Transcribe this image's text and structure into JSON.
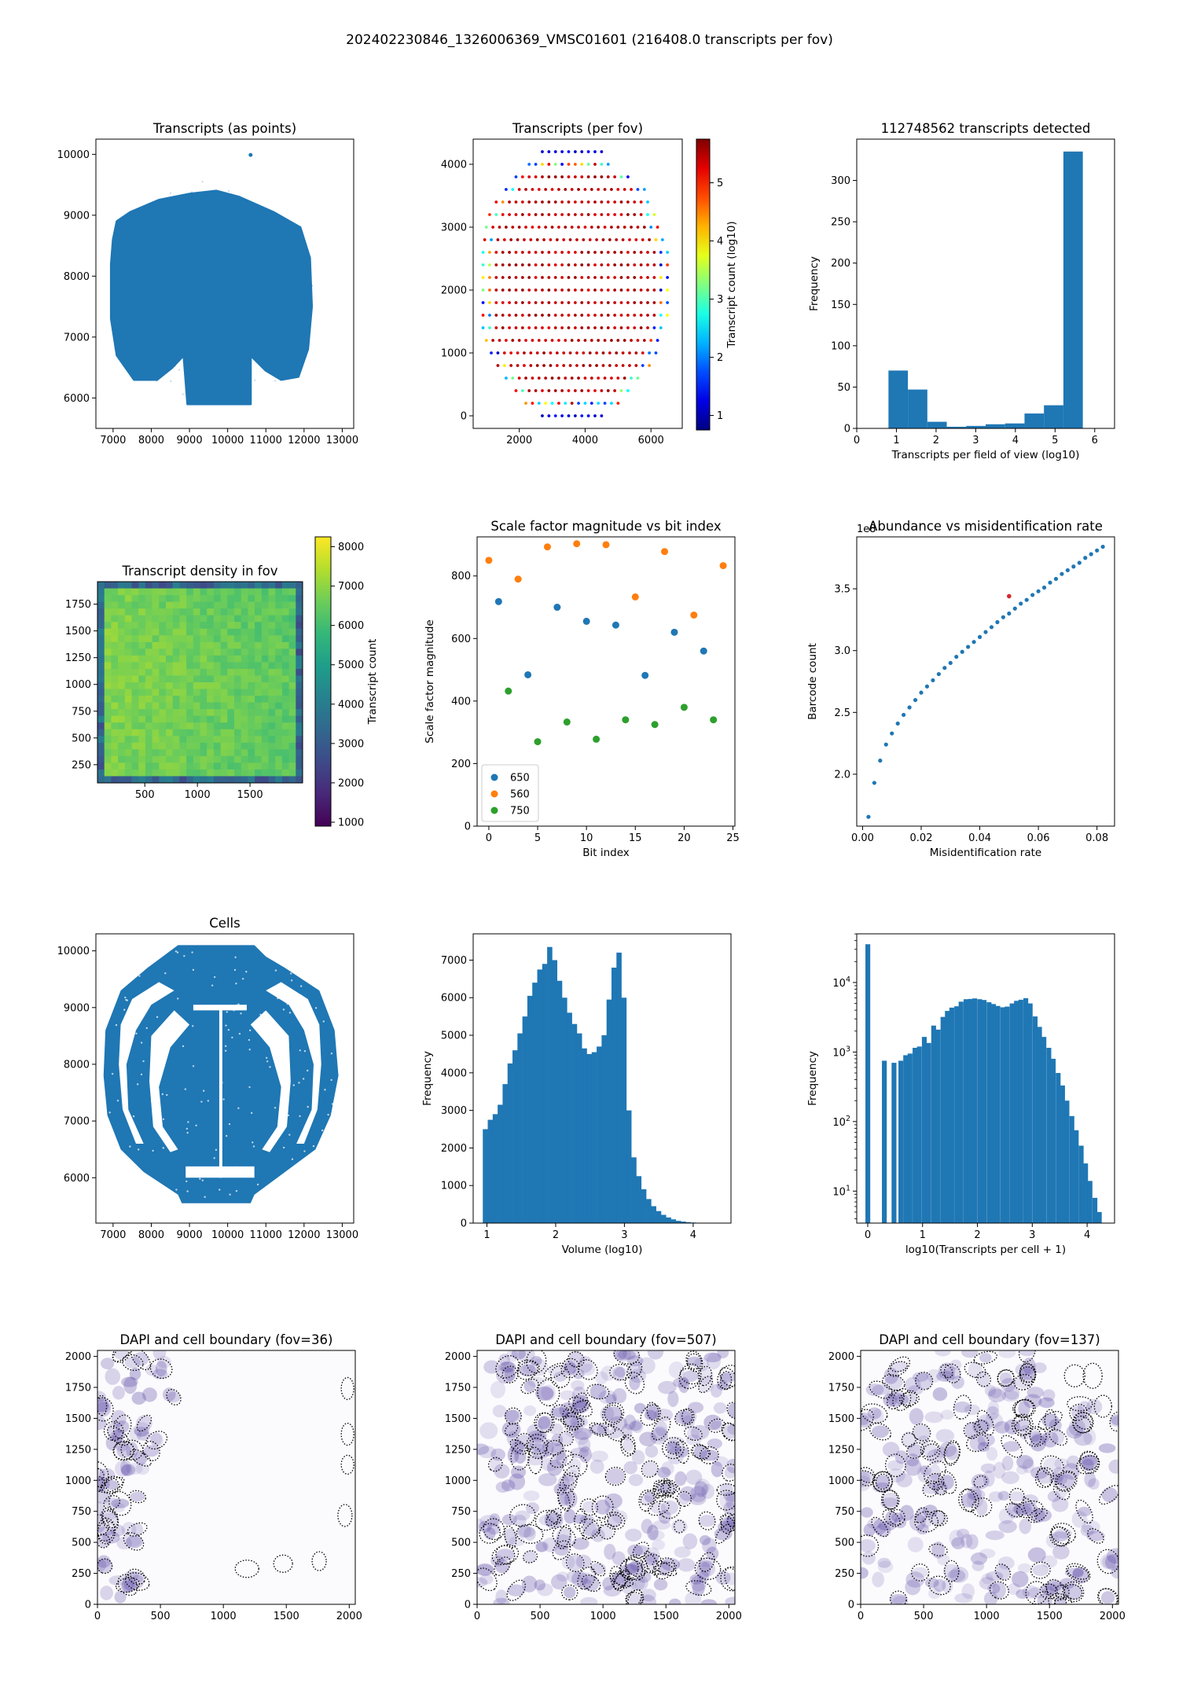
{
  "figure": {
    "suptitle": "202402230846_1326006369_VMSC01601 (216408.0 transcripts per fov)"
  },
  "colors": {
    "blue": "#1f77b4",
    "orange": "#ff7f0e",
    "green": "#2ca02c",
    "red": "#d62728",
    "dapi": "#5b4aa6"
  },
  "chart_data": [
    {
      "id": "transcripts_points",
      "type": "scatter",
      "title": "Transcripts (as points)",
      "xlabel": "",
      "ylabel": "",
      "xlim": [
        6550,
        13300
      ],
      "ylim": [
        5500,
        10250
      ],
      "xticks": [
        "7000",
        "8000",
        "9000",
        "10000",
        "11000",
        "12000",
        "13000"
      ],
      "yticks": [
        "6000",
        "7000",
        "8000",
        "9000",
        "10000"
      ],
      "outline": [
        [
          7100,
          8900
        ],
        [
          7450,
          9050
        ],
        [
          8200,
          9250
        ],
        [
          9000,
          9350
        ],
        [
          9700,
          9400
        ],
        [
          10300,
          9300
        ],
        [
          11200,
          9050
        ],
        [
          11900,
          8800
        ],
        [
          12150,
          8300
        ],
        [
          12200,
          7500
        ],
        [
          12100,
          6800
        ],
        [
          11850,
          6350
        ],
        [
          11400,
          6300
        ],
        [
          11000,
          6450
        ],
        [
          10600,
          6700
        ],
        [
          10600,
          5900
        ],
        [
          8950,
          5900
        ],
        [
          8850,
          6700
        ],
        [
          8550,
          6500
        ],
        [
          8150,
          6300
        ],
        [
          7550,
          6300
        ],
        [
          7100,
          6700
        ],
        [
          6950,
          7300
        ],
        [
          6950,
          8200
        ],
        [
          7000,
          8600
        ]
      ],
      "marks": {
        "color": "#1f77b4"
      }
    },
    {
      "id": "transcripts_per_fov",
      "type": "scatter",
      "title": "Transcripts (per fov)",
      "xlabel": "",
      "ylabel": "",
      "colorbar_label": "Transcript count (log10)",
      "colorbar_ticks": [
        "1",
        "2",
        "3",
        "4",
        "5"
      ],
      "colorbar_range": [
        0.75,
        5.75
      ],
      "xlim": [
        600,
        6950
      ],
      "ylim": [
        -200,
        4400
      ],
      "xticks": [
        "2000",
        "4000",
        "6000"
      ],
      "yticks": [
        "0",
        "1000",
        "2000",
        "3000",
        "4000"
      ],
      "grid_rows": [
        {
          "y": 0,
          "x0": 2700,
          "x1": 4400
        },
        {
          "y": 200,
          "x0": 2200,
          "x1": 4900
        },
        {
          "y": 400,
          "x0": 1900,
          "x1": 5300
        },
        {
          "y": 600,
          "x0": 1600,
          "x1": 5600
        },
        {
          "y": 800,
          "x0": 1350,
          "x1": 5900
        },
        {
          "y": 1000,
          "x0": 1150,
          "x1": 6100
        },
        {
          "y": 1200,
          "x0": 1000,
          "x1": 6250
        },
        {
          "y": 1400,
          "x0": 900,
          "x1": 6350
        },
        {
          "y": 1600,
          "x0": 900,
          "x1": 6450
        },
        {
          "y": 1800,
          "x0": 900,
          "x1": 6450
        },
        {
          "y": 2000,
          "x0": 900,
          "x1": 6450
        },
        {
          "y": 2200,
          "x0": 900,
          "x1": 6450
        },
        {
          "y": 2400,
          "x0": 900,
          "x1": 6450
        },
        {
          "y": 2600,
          "x0": 900,
          "x1": 6450
        },
        {
          "y": 2800,
          "x0": 950,
          "x1": 6350
        },
        {
          "y": 3000,
          "x0": 1000,
          "x1": 6250
        },
        {
          "y": 3200,
          "x0": 1100,
          "x1": 6150
        },
        {
          "y": 3400,
          "x0": 1300,
          "x1": 5950
        },
        {
          "y": 3600,
          "x0": 1600,
          "x1": 5700
        },
        {
          "y": 3800,
          "x0": 1900,
          "x1": 5300
        },
        {
          "y": 4000,
          "x0": 2300,
          "x1": 4700
        },
        {
          "y": 4200,
          "x0": 2700,
          "x1": 4400
        }
      ],
      "low_count_border_rows": 2
    },
    {
      "id": "transcripts_hist",
      "type": "bar",
      "title": "112748562 transcripts detected",
      "xlabel": "Transcripts per field of view (log10)",
      "ylabel": "Frequency",
      "xlim": [
        0,
        6.5
      ],
      "ylim": [
        0,
        350
      ],
      "xticks": [
        "0",
        "1",
        "2",
        "3",
        "4",
        "5",
        "6"
      ],
      "yticks": [
        "0",
        "50",
        "100",
        "150",
        "200",
        "250",
        "300"
      ],
      "bin_edges": [
        0.8,
        1.29,
        1.78,
        2.27,
        2.76,
        3.25,
        3.74,
        4.23,
        4.72,
        5.21,
        5.7
      ],
      "values": [
        70,
        47,
        8,
        2,
        3,
        5,
        6,
        18,
        28,
        335
      ]
    },
    {
      "id": "density_in_fov",
      "type": "heatmap",
      "title": "Transcript density in fov",
      "xlabel": "",
      "ylabel": "",
      "colorbar_label": "Transcript count",
      "colorbar_ticks": [
        "1000",
        "2000",
        "3000",
        "4000",
        "5000",
        "6000",
        "7000",
        "8000"
      ],
      "colorbar_range": [
        900,
        8250
      ],
      "xlim": [
        50,
        2000
      ],
      "ylim": [
        80,
        1960
      ],
      "xticks": [
        "500",
        "1000",
        "1500"
      ],
      "yticks": [
        "250",
        "500",
        "750",
        "1000",
        "1250",
        "1500",
        "1750"
      ],
      "typical_value": 6900
    },
    {
      "id": "scale_factor",
      "type": "scatter",
      "title": "Scale factor magnitude vs bit index",
      "xlabel": "Bit index",
      "ylabel": "Scale factor magnitude",
      "xlim": [
        -1.2,
        25.2
      ],
      "ylim": [
        0,
        925
      ],
      "xticks": [
        "0",
        "5",
        "10",
        "15",
        "20",
        "25"
      ],
      "yticks": [
        "0",
        "200",
        "400",
        "600",
        "800"
      ],
      "legend_position": "lower left",
      "series": [
        {
          "name": "650",
          "color": "#1f77b4",
          "points": [
            [
              1,
              718
            ],
            [
              4,
              484
            ],
            [
              7,
              700
            ],
            [
              10,
              655
            ],
            [
              13,
              643
            ],
            [
              16,
              482
            ],
            [
              19,
              620
            ],
            [
              22,
              560
            ]
          ]
        },
        {
          "name": "560",
          "color": "#ff7f0e",
          "points": [
            [
              0,
              850
            ],
            [
              3,
              790
            ],
            [
              6,
              893
            ],
            [
              9,
              903
            ],
            [
              12,
              900
            ],
            [
              15,
              733
            ],
            [
              18,
              878
            ],
            [
              21,
              675
            ],
            [
              24,
              833
            ]
          ]
        },
        {
          "name": "750",
          "color": "#2ca02c",
          "points": [
            [
              2,
              432
            ],
            [
              5,
              270
            ],
            [
              8,
              333
            ],
            [
              11,
              278
            ],
            [
              14,
              340
            ],
            [
              17,
              325
            ],
            [
              20,
              380
            ],
            [
              23,
              340
            ]
          ]
        }
      ]
    },
    {
      "id": "abundance_vs_misid",
      "type": "scatter",
      "title": "Abundance vs misidentification rate",
      "xlabel": "Misidentification rate",
      "ylabel": "Barcode count",
      "offset_text": "1e8",
      "xlim": [
        -0.002,
        0.086
      ],
      "ylim": [
        1.58,
        3.92
      ],
      "xticks": [
        "0.00",
        "0.02",
        "0.04",
        "0.06",
        "0.08"
      ],
      "yticks": [
        "2.0",
        "2.5",
        "3.0",
        "3.5"
      ],
      "curve_points": [
        [
          0.002,
          1.655
        ],
        [
          0.004,
          1.93
        ],
        [
          0.006,
          2.11
        ],
        [
          0.008,
          2.24
        ],
        [
          0.01,
          2.33
        ],
        [
          0.012,
          2.41
        ],
        [
          0.014,
          2.48
        ],
        [
          0.016,
          2.54
        ],
        [
          0.018,
          2.6
        ],
        [
          0.02,
          2.66
        ],
        [
          0.022,
          2.71
        ],
        [
          0.024,
          2.76
        ],
        [
          0.026,
          2.81
        ],
        [
          0.028,
          2.86
        ],
        [
          0.03,
          2.9
        ],
        [
          0.032,
          2.95
        ],
        [
          0.034,
          2.99
        ],
        [
          0.036,
          3.03
        ],
        [
          0.038,
          3.07
        ],
        [
          0.04,
          3.11
        ],
        [
          0.042,
          3.15
        ],
        [
          0.044,
          3.19
        ],
        [
          0.046,
          3.23
        ],
        [
          0.048,
          3.27
        ],
        [
          0.05,
          3.3
        ],
        [
          0.052,
          3.34
        ],
        [
          0.054,
          3.38
        ],
        [
          0.056,
          3.41
        ],
        [
          0.058,
          3.45
        ],
        [
          0.06,
          3.48
        ],
        [
          0.062,
          3.51
        ],
        [
          0.064,
          3.55
        ],
        [
          0.066,
          3.58
        ],
        [
          0.068,
          3.62
        ],
        [
          0.07,
          3.65
        ],
        [
          0.072,
          3.68
        ],
        [
          0.074,
          3.71
        ],
        [
          0.076,
          3.75
        ],
        [
          0.078,
          3.78
        ],
        [
          0.08,
          3.81
        ],
        [
          0.082,
          3.84
        ]
      ],
      "highlight_point": [
        0.05,
        3.44
      ],
      "highlight_color": "#d62728"
    },
    {
      "id": "cells",
      "type": "scatter",
      "title": "Cells",
      "xlabel": "",
      "ylabel": "",
      "xlim": [
        6550,
        13300
      ],
      "ylim": [
        5200,
        10300
      ],
      "xticks": [
        "7000",
        "8000",
        "9000",
        "10000",
        "11000",
        "12000",
        "13000"
      ],
      "yticks": [
        "6000",
        "7000",
        "8000",
        "9000",
        "10000"
      ],
      "outline": [
        [
          8700,
          10100
        ],
        [
          10700,
          10100
        ],
        [
          11000,
          9900
        ],
        [
          11500,
          9700
        ],
        [
          12400,
          9300
        ],
        [
          12800,
          8600
        ],
        [
          12900,
          7800
        ],
        [
          12700,
          7100
        ],
        [
          12300,
          6500
        ],
        [
          11600,
          6150
        ],
        [
          10700,
          5700
        ],
        [
          10600,
          5550
        ],
        [
          8800,
          5550
        ],
        [
          8700,
          5700
        ],
        [
          7800,
          6100
        ],
        [
          7200,
          6500
        ],
        [
          6850,
          7100
        ],
        [
          6750,
          7800
        ],
        [
          6800,
          8600
        ],
        [
          7200,
          9300
        ],
        [
          7900,
          9700
        ],
        [
          8300,
          9900
        ]
      ],
      "marks": {
        "color": "#1f77b4"
      }
    },
    {
      "id": "volume_hist",
      "type": "bar",
      "title": "",
      "xlabel": "Volume (log10)",
      "ylabel": "Frequency",
      "xlim": [
        0.8,
        4.55
      ],
      "ylim": [
        0,
        7700
      ],
      "xticks": [
        "1",
        "2",
        "3",
        "4"
      ],
      "yticks": [
        "0",
        "1000",
        "2000",
        "3000",
        "4000",
        "5000",
        "6000",
        "7000"
      ],
      "bin_start": 0.94,
      "bin_width": 0.072,
      "values": [
        2500,
        2750,
        2900,
        3150,
        3700,
        4250,
        4600,
        5050,
        5500,
        6050,
        6400,
        6750,
        6900,
        7350,
        7000,
        6450,
        6000,
        5600,
        5300,
        5050,
        4650,
        4500,
        4550,
        4700,
        5000,
        5950,
        6800,
        7200,
        6000,
        3000,
        1750,
        1250,
        900,
        640,
        450,
        320,
        220,
        150,
        100,
        60,
        40,
        25,
        15,
        10,
        6
      ]
    },
    {
      "id": "transcripts_per_cell_hist",
      "type": "bar",
      "title": "",
      "xlabel": "log10(Transcripts per cell + 1)",
      "ylabel": "Frequency",
      "y_scale": "log",
      "xlim": [
        -0.2,
        4.5
      ],
      "ylim_log10": [
        0.54,
        4.7
      ],
      "xticks": [
        "0",
        "1",
        "2",
        "3",
        "4"
      ],
      "ytick_powers": [
        1,
        2,
        3,
        4
      ],
      "ytick_base": "10",
      "bin_width": 0.0838,
      "bars": [
        [
          0.0,
          35500
        ],
        [
          0.301,
          750
        ],
        [
          0.477,
          700
        ],
        [
          0.602,
          750
        ],
        [
          0.69,
          900
        ],
        [
          0.77,
          950
        ],
        [
          0.86,
          1150
        ],
        [
          0.94,
          1200
        ],
        [
          1.03,
          1650
        ],
        [
          1.11,
          1350
        ],
        [
          1.2,
          2400
        ],
        [
          1.28,
          2100
        ],
        [
          1.37,
          3200
        ],
        [
          1.45,
          3900
        ],
        [
          1.53,
          4350
        ],
        [
          1.62,
          4550
        ],
        [
          1.7,
          5300
        ],
        [
          1.79,
          5750
        ],
        [
          1.87,
          5800
        ],
        [
          1.95,
          5900
        ],
        [
          2.04,
          5750
        ],
        [
          2.12,
          5600
        ],
        [
          2.21,
          5200
        ],
        [
          2.29,
          4900
        ],
        [
          2.37,
          4600
        ],
        [
          2.46,
          4400
        ],
        [
          2.54,
          4500
        ],
        [
          2.63,
          5000
        ],
        [
          2.71,
          5450
        ],
        [
          2.79,
          5650
        ],
        [
          2.88,
          5950
        ],
        [
          2.96,
          5000
        ],
        [
          3.05,
          3250
        ],
        [
          3.13,
          2300
        ],
        [
          3.21,
          1650
        ],
        [
          3.3,
          1150
        ],
        [
          3.38,
          800
        ],
        [
          3.47,
          500
        ],
        [
          3.55,
          330
        ],
        [
          3.63,
          200
        ],
        [
          3.72,
          120
        ],
        [
          3.8,
          75
        ],
        [
          3.89,
          45
        ],
        [
          3.97,
          25
        ],
        [
          4.05,
          14
        ],
        [
          4.14,
          8
        ],
        [
          4.22,
          5
        ]
      ]
    },
    {
      "id": "dapi_fov36",
      "type": "heatmap",
      "title": "DAPI and cell boundary (fov=36)",
      "xlabel": "",
      "ylabel": "",
      "xlim": [
        0,
        2048
      ],
      "ylim": [
        0,
        2048
      ],
      "xticks": [
        "0",
        "500",
        "1000",
        "1500",
        "2000"
      ],
      "yticks": [
        "0",
        "250",
        "500",
        "750",
        "1000",
        "1250",
        "1500",
        "1750",
        "2000"
      ],
      "density": "sparse-left"
    },
    {
      "id": "dapi_fov507",
      "type": "heatmap",
      "title": "DAPI and cell boundary (fov=507)",
      "xlabel": "",
      "ylabel": "",
      "xlim": [
        0,
        2048
      ],
      "ylim": [
        0,
        2048
      ],
      "xticks": [
        "0",
        "500",
        "1000",
        "1500",
        "2000"
      ],
      "yticks": [
        "0",
        "250",
        "500",
        "750",
        "1000",
        "1250",
        "1500",
        "1750",
        "2000"
      ],
      "density": "dense"
    },
    {
      "id": "dapi_fov137",
      "type": "heatmap",
      "title": "DAPI and cell boundary (fov=137)",
      "xlabel": "",
      "ylabel": "",
      "xlim": [
        0,
        2048
      ],
      "ylim": [
        0,
        2048
      ],
      "xticks": [
        "0",
        "500",
        "1000",
        "1500",
        "2000"
      ],
      "yticks": [
        "0",
        "250",
        "500",
        "750",
        "1000",
        "1250",
        "1500",
        "1750",
        "2000"
      ],
      "density": "medium"
    }
  ]
}
